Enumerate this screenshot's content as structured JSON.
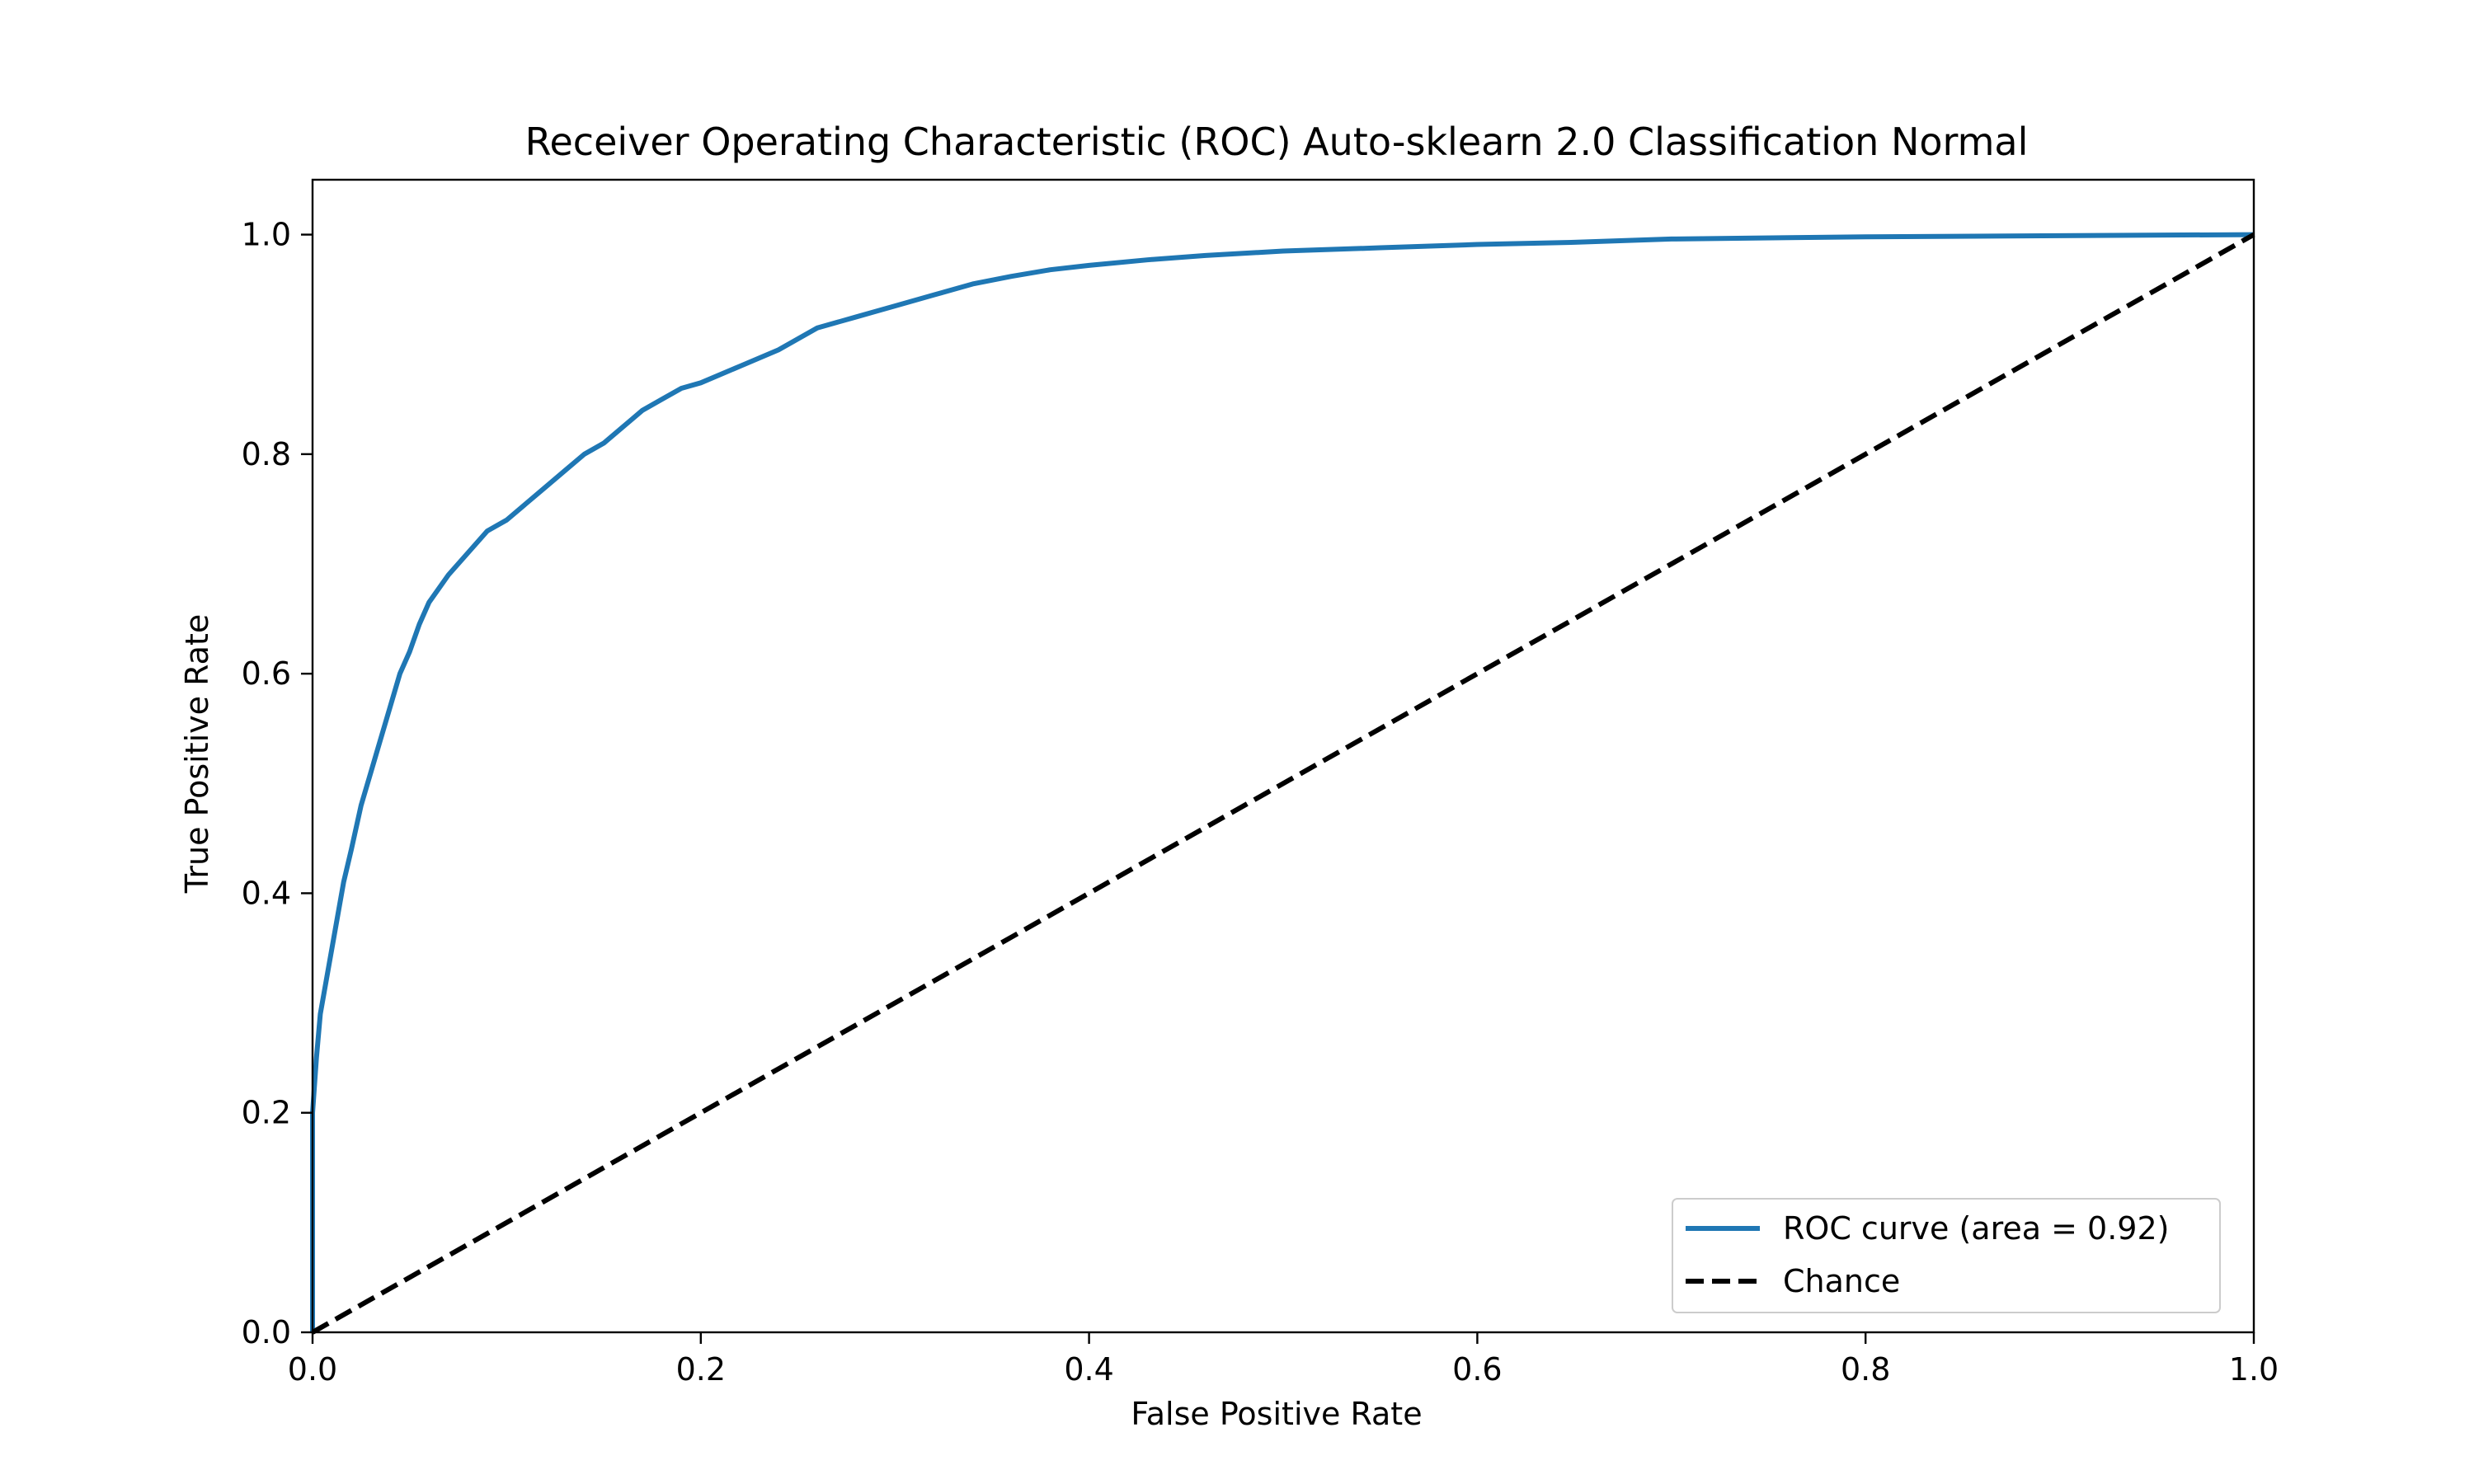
{
  "chart_data": {
    "type": "line",
    "title": "Receiver Operating Characteristic (ROC) Auto-sklearn 2.0 Classification Normal",
    "xlabel": "False Positive Rate",
    "ylabel": "True Positive Rate",
    "xlim": [
      0.0,
      1.0
    ],
    "ylim": [
      0.0,
      1.05
    ],
    "xticks": [
      0.0,
      0.2,
      0.4,
      0.6,
      0.8,
      1.0
    ],
    "yticks": [
      0.0,
      0.2,
      0.4,
      0.6,
      0.8,
      1.0
    ],
    "xtick_labels": [
      "0.0",
      "0.2",
      "0.4",
      "0.6",
      "0.8",
      "1.0"
    ],
    "ytick_labels": [
      "0.0",
      "0.2",
      "0.4",
      "0.6",
      "0.8",
      "1.0"
    ],
    "grid": false,
    "legend_position": "lower-right",
    "series": [
      {
        "name": "ROC curve (area = 0.92)",
        "color": "#1f77b4",
        "style": "solid",
        "x": [
          0.0,
          0.0,
          0.002,
          0.004,
          0.006,
          0.008,
          0.01,
          0.013,
          0.016,
          0.02,
          0.025,
          0.03,
          0.035,
          0.04,
          0.045,
          0.05,
          0.055,
          0.06,
          0.07,
          0.08,
          0.09,
          0.1,
          0.11,
          0.12,
          0.13,
          0.14,
          0.15,
          0.16,
          0.17,
          0.18,
          0.19,
          0.2,
          0.22,
          0.24,
          0.26,
          0.28,
          0.3,
          0.32,
          0.34,
          0.36,
          0.38,
          0.4,
          0.43,
          0.46,
          0.5,
          0.55,
          0.6,
          0.65,
          0.7,
          0.8,
          0.9,
          1.0
        ],
        "y": [
          0.0,
          0.2,
          0.25,
          0.29,
          0.31,
          0.33,
          0.35,
          0.38,
          0.41,
          0.44,
          0.48,
          0.51,
          0.54,
          0.57,
          0.6,
          0.62,
          0.645,
          0.665,
          0.69,
          0.71,
          0.73,
          0.74,
          0.755,
          0.77,
          0.785,
          0.8,
          0.81,
          0.825,
          0.84,
          0.85,
          0.86,
          0.865,
          0.88,
          0.895,
          0.915,
          0.925,
          0.935,
          0.945,
          0.955,
          0.962,
          0.968,
          0.972,
          0.977,
          0.981,
          0.985,
          0.988,
          0.991,
          0.993,
          0.996,
          0.998,
          0.999,
          1.0
        ]
      },
      {
        "name": "Chance",
        "color": "#000000",
        "style": "dashed",
        "x": [
          0.0,
          1.0
        ],
        "y": [
          0.0,
          1.0
        ]
      }
    ]
  }
}
